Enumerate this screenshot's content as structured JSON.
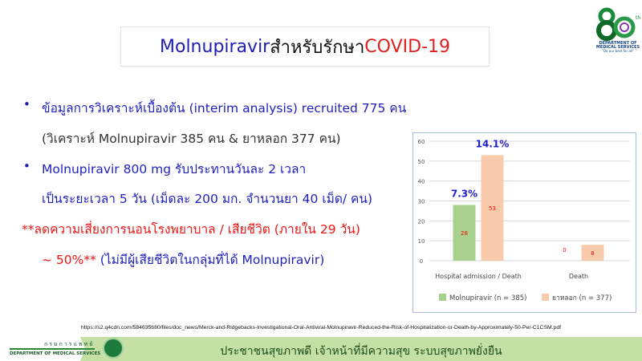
{
  "title": {
    "part1": "Molnupiravir",
    "part2": " สำหรับรักษา ",
    "part3": "COVID-19"
  },
  "body": {
    "bullet_glyph": "•",
    "line1": "ข้อมูลการวิเคราะห์เบื้องต้น (interim analysis) recruited 775 คน",
    "line2": "(วิเคราะห์ Molnupiravir 385 คน & ยาหลอก 377 คน)",
    "line3": "Molnupiravir 800 mg รับประทานวันละ 2 เวลา",
    "line4": "เป็นระยะเวลา 5 วัน (เม็ดละ 200 มก. จำนวนยา 40 เม็ด/ คน)",
    "line5": "**ลดความเสี่ยงการนอนโรงพยาบาล / เสียชีวิต (ภายใน 29 วัน)",
    "line6a": "~ 50%**",
    "line6b": " (ไม่มีผู้เสียชีวิตในกลุ่มที่ได้ Molnupiravir)"
  },
  "source_url": "https://s2.q4cdn.com/584635680/files/doc_news/Merck-and-Ridgebacks-Investigational-Oral-Antiviral-Molnupiravir-Reduced-the-Risk-of-Hospitalization-or-Death-by-Approximately-50-Per-C1CSM.pdf",
  "footer": {
    "dept_thai": "กรมการแพทย์",
    "dept_en": "DEPARTMENT OF MEDICAL SERVICES",
    "slogan": "ประชาชนสุขภาพดี เจ้าหน้าที่มีความสุข ระบบสุขภาพยั่งยืน"
  },
  "logo": {
    "text": "80th DEPARTMENT OF MEDICAL SERVICES \"Do our best for all\""
  },
  "chart_data": {
    "type": "bar",
    "categories": [
      "Hospital admission / Death",
      "Death"
    ],
    "series": [
      {
        "name": "Molnupiravir (n = 385)",
        "values": [
          28,
          0
        ],
        "color": "#a9d18e"
      },
      {
        "name": "ยาหลอก (n = 377)",
        "values": [
          53,
          8
        ],
        "color": "#f8cbad"
      }
    ],
    "yticks": [
      "0",
      "10",
      "20",
      "30",
      "40",
      "50",
      "60"
    ],
    "ylim": [
      0,
      60
    ],
    "grid": true,
    "legend": "bottom",
    "data_label_color": "#ff0000",
    "annotations": [
      "7.3%",
      "14.1%"
    ],
    "annotation_color": "#1f1fd0"
  }
}
